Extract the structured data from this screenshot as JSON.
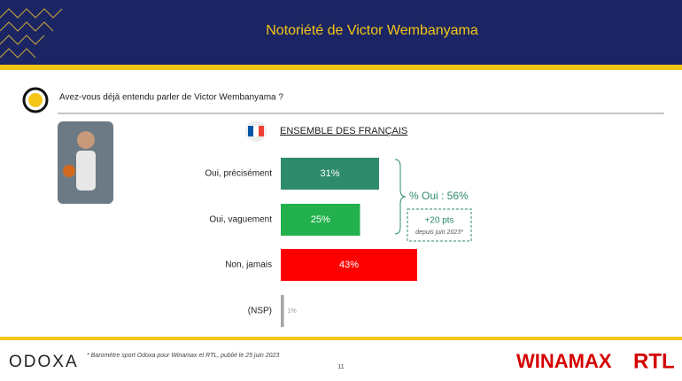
{
  "header": {
    "title": "Notoriété de Victor Wembanyama"
  },
  "question": "Avez-vous déjà entendu parler de Victor Wembanyama ?",
  "chart_data": {
    "type": "bar",
    "orientation": "horizontal",
    "subtitle": "ENSEMBLE DES FRANÇAIS",
    "categories": [
      "Oui, précisément",
      "Oui, vaguement",
      "Non, jamais",
      "(NSP)"
    ],
    "values": [
      31,
      25,
      43,
      1
    ],
    "value_labels": [
      "31%",
      "25%",
      "43%",
      "1%"
    ],
    "colors": [
      "#2e8b6b",
      "#22b14c",
      "#ff0000",
      "#a6a6a6"
    ],
    "annotations": [
      "% Oui : 56%",
      "+20 pts",
      "depuis juin 2023*"
    ]
  },
  "footer": {
    "logo": "ODOXA",
    "note": "* Baromètre sport Odoxa pour Winamax et RTL, publié le 25 juin 2023",
    "page": "11",
    "sponsors": [
      "WINAMAX",
      "RTL"
    ]
  }
}
